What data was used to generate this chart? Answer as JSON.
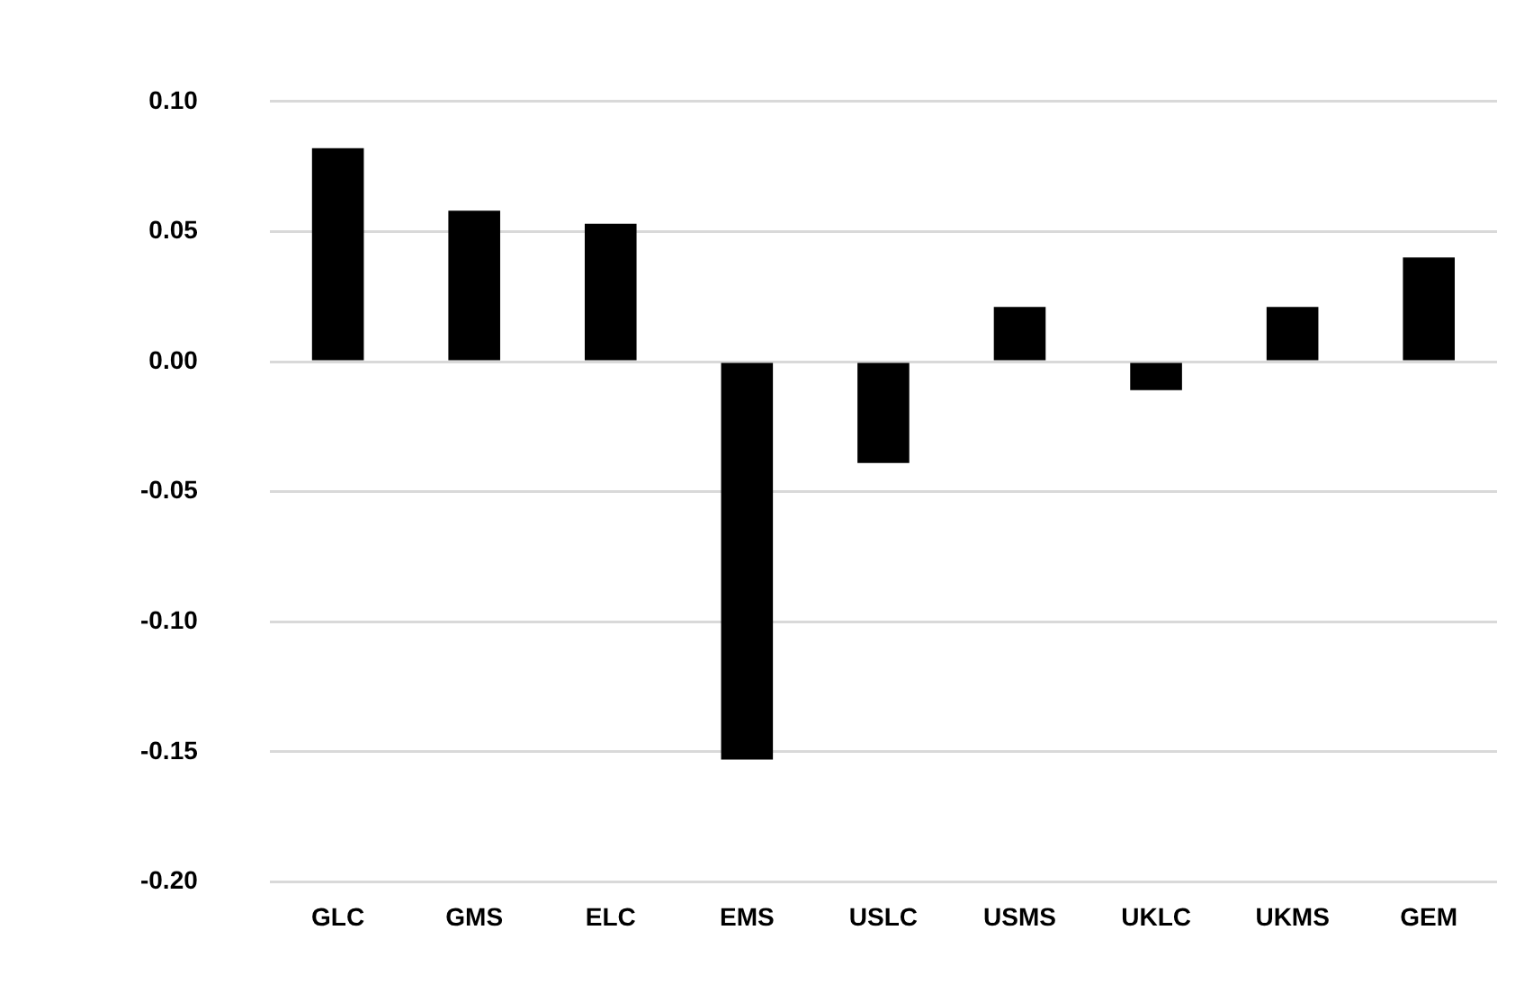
{
  "chart_data": {
    "type": "bar",
    "categories": [
      "GLC",
      "GMS",
      "ELC",
      "EMS",
      "USLC",
      "USMS",
      "UKLC",
      "UKMS",
      "GEM"
    ],
    "values": [
      0.082,
      0.058,
      0.053,
      -0.153,
      -0.039,
      0.021,
      -0.011,
      0.021,
      0.04
    ],
    "color": "#000000",
    "ylim": [
      -0.2,
      0.1
    ],
    "yticks": [
      {
        "value": -0.2,
        "label": "-0.20"
      },
      {
        "value": -0.15,
        "label": "-0.15"
      },
      {
        "value": -0.1,
        "label": "-0.10"
      },
      {
        "value": -0.05,
        "label": "-0.05"
      },
      {
        "value": 0,
        "label": "0.00"
      },
      {
        "value": 0.05,
        "label": "0.05"
      },
      {
        "value": 0.1,
        "label": "0.10"
      }
    ],
    "grid": "y",
    "legend": false
  }
}
